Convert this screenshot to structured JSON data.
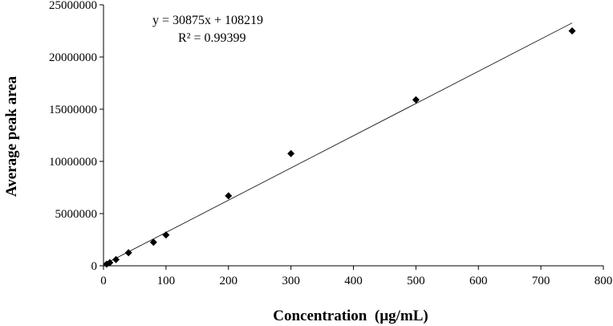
{
  "chart_data": {
    "type": "scatter",
    "title": "",
    "xlabel": "Concentration  (µg/mL)",
    "ylabel": "Average peak area",
    "xlim": [
      0,
      800
    ],
    "ylim": [
      0,
      25000000
    ],
    "x_ticks": [
      "0",
      "100",
      "200",
      "300",
      "400",
      "500",
      "600",
      "700",
      "800"
    ],
    "y_ticks": [
      "0",
      "5000000",
      "10000000",
      "15000000",
      "20000000",
      "25000000"
    ],
    "grid": false,
    "legend": "none",
    "marker_color": "#000000",
    "marker": "diamond",
    "series": [
      {
        "x": [
          5,
          10,
          20,
          40,
          80,
          100,
          200,
          300,
          500,
          750
        ],
        "y": [
          150000,
          300000,
          600000,
          1250000,
          2250000,
          2950000,
          6700000,
          10750000,
          15900000,
          22500000
        ]
      }
    ],
    "trendline": {
      "type": "linear",
      "slope": 30875,
      "intercept": 108219,
      "x_range": [
        0,
        750
      ],
      "equation": "y = 30875x + 108219",
      "r_squared": "R² = 0.99399"
    }
  }
}
